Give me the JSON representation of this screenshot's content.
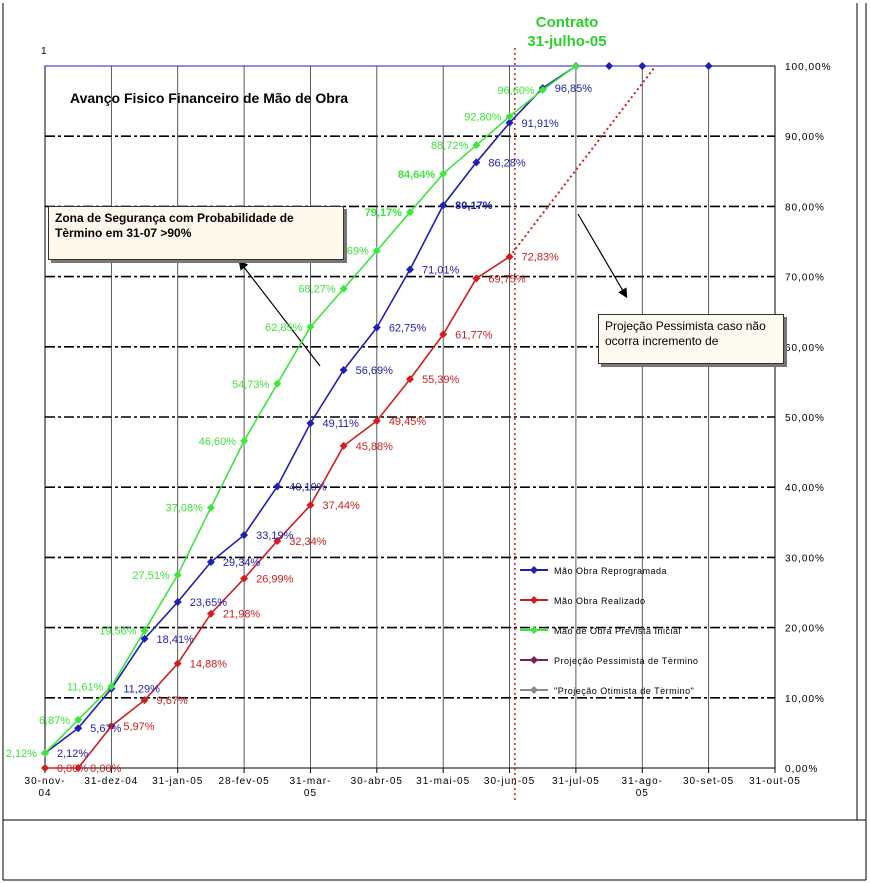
{
  "title": "Avanço Fisico Financeiro de Mão de Obra",
  "contract": {
    "line1": "Contrato",
    "line2": "31-julho-05"
  },
  "corner_marker": "1",
  "callouts": {
    "safety": "Zona  de Segurança com Probabilidade de Tèrmino em 31-07   >90%",
    "pessimist": "Projeção  Pessimista caso não ocorra incremento de"
  },
  "colors": {
    "reprogramada": "#1f1fb4",
    "realizado": "#d01f1f",
    "prevista": "#3ce63c",
    "pessimista": "#7a1f5e",
    "otimista": "#8c8c8c",
    "contract": "#2bd12b",
    "contract_line": "#d01f1f"
  },
  "chart_data": {
    "type": "line",
    "title": "Avanço Fisico Financeiro de Mão de Obra",
    "x_tick_labels": [
      "30-nov-04",
      "31-dez-04",
      "31-jan-05",
      "28-fev-05",
      "31-mar-05",
      "30-abr-05",
      "31-mai-05",
      "30-jun-05",
      "31-jul-05",
      "31-ago-05",
      "30-set-05",
      "31-out-05"
    ],
    "y_tick_labels": [
      "0,00%",
      "10,00%",
      "20,00%",
      "30,00%",
      "40,00%",
      "50,00%",
      "60,00%",
      "70,00%",
      "80,00%",
      "90,00%",
      "100,00%"
    ],
    "ylim": [
      0,
      100
    ],
    "xlim": [
      0,
      11
    ],
    "grid": true,
    "legend_position": "right",
    "series": [
      {
        "name": "Mão Obra Reprogramada",
        "color_key": "reprogramada",
        "x": [
          0,
          0.5,
          1,
          1.5,
          2,
          2.5,
          3,
          3.5,
          4,
          4.5,
          5,
          5.5,
          6,
          6.5,
          7,
          7.5,
          8
        ],
        "y": [
          2.12,
          5.67,
          11.29,
          18.41,
          23.65,
          29.34,
          33.19,
          40.1,
          49.11,
          56.69,
          62.75,
          71.01,
          80.17,
          86.28,
          91.91,
          96.85,
          100
        ],
        "labels": [
          "2,12%",
          "5,67%",
          "11,29%",
          "18,41%",
          "23,65%",
          "29,34%",
          "33,19%",
          "40,10%",
          "49,11%",
          "56,69%",
          "62,75%",
          "71,01%",
          "80,17%",
          "86,28%",
          "91,91%",
          "96,85%",
          ""
        ]
      },
      {
        "name": "Mão Obra Realizado",
        "color_key": "realizado",
        "x": [
          0,
          0.5,
          1,
          1.5,
          2,
          2.5,
          3,
          3.5,
          4,
          4.5,
          5,
          5.5,
          6,
          6.5,
          7
        ],
        "y": [
          0,
          0,
          5.97,
          9.67,
          14.88,
          21.98,
          26.99,
          32.34,
          37.44,
          45.88,
          49.45,
          55.39,
          61.77,
          69.75,
          72.83
        ],
        "labels": [
          "0,00%",
          "0,00%",
          "5,97%",
          "9,67%",
          "14,88%",
          "21,98%",
          "26,99%",
          "32,34%",
          "37,44%",
          "45,88%",
          "49,45%",
          "55,39%",
          "61,77%",
          "69,75%",
          "72,83%"
        ]
      },
      {
        "name": "Mão de Obra Prevista Inicial",
        "color_key": "prevista",
        "x": [
          0,
          0.5,
          1,
          1.5,
          2,
          2.5,
          3,
          3.5,
          4,
          4.5,
          5,
          5.5,
          6,
          6.5,
          7,
          7.5,
          8
        ],
        "y": [
          2.12,
          6.87,
          11.61,
          19.56,
          27.51,
          37.08,
          46.6,
          54.73,
          62.85,
          68.27,
          73.69,
          79.17,
          84.64,
          88.72,
          92.8,
          96.6,
          100
        ],
        "labels": [
          "2,12%",
          "6,87%",
          "11,61%",
          "19,56%",
          "27,51%",
          "37,08%",
          "46,60%",
          "54,73%",
          "62,85%",
          "68,27%",
          "73,69%",
          "79,17%",
          "84,64%",
          "88,72%",
          "92,80%",
          "96,60%",
          ""
        ]
      },
      {
        "name": "Projeção Pessimista de Tèrmino",
        "color_key": "pessimista",
        "x": [],
        "y": [],
        "labels": []
      },
      {
        "name": "\"Projeção Otimista de Tèrmino\"",
        "color_key": "otimista",
        "x": [],
        "y": [],
        "labels": []
      }
    ],
    "top_line_points": {
      "x": [
        0,
        8,
        8.5,
        9,
        10
      ],
      "y": [
        100,
        100,
        100,
        100,
        100
      ]
    },
    "pessimist_projection": {
      "x": [
        7,
        9.2
      ],
      "y": [
        72.83,
        100
      ]
    },
    "contract_marker_x": 7.08
  }
}
